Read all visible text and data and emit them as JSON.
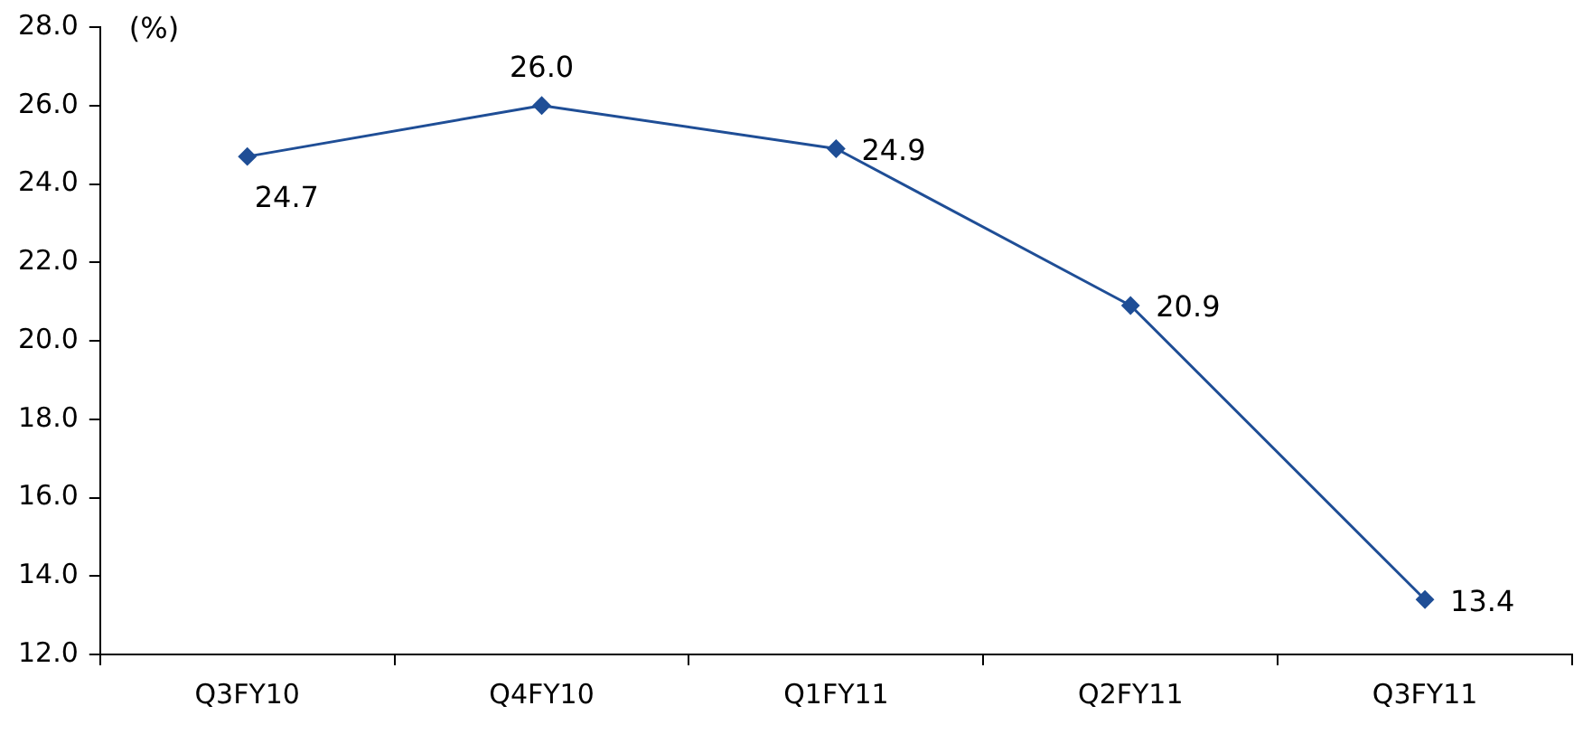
{
  "chart_data": {
    "type": "line",
    "ylabel": "(%)",
    "categories": [
      "Q3FY10",
      "Q4FY10",
      "Q1FY11",
      "Q2FY11",
      "Q3FY11"
    ],
    "series": [
      {
        "color": "#1f4e96",
        "values": [
          24.7,
          26.0,
          24.9,
          20.9,
          13.4
        ],
        "value_labels": [
          "24.7",
          "26.0",
          "24.9",
          "20.9",
          "13.4"
        ]
      }
    ],
    "ylim": [
      12,
      28
    ],
    "yticks": [
      {
        "value": 12,
        "label": "12.0"
      },
      {
        "value": 14,
        "label": "14.0"
      },
      {
        "value": 16,
        "label": "16.0"
      },
      {
        "value": 18,
        "label": "18.0"
      },
      {
        "value": 20,
        "label": "20.0"
      },
      {
        "value": 22,
        "label": "22.0"
      },
      {
        "value": 24,
        "label": "24.0"
      },
      {
        "value": 26,
        "label": "26.0"
      },
      {
        "value": 28,
        "label": "28.0"
      }
    ],
    "grid": false,
    "legend": false,
    "marker": "diamond",
    "line_style": "solid"
  }
}
